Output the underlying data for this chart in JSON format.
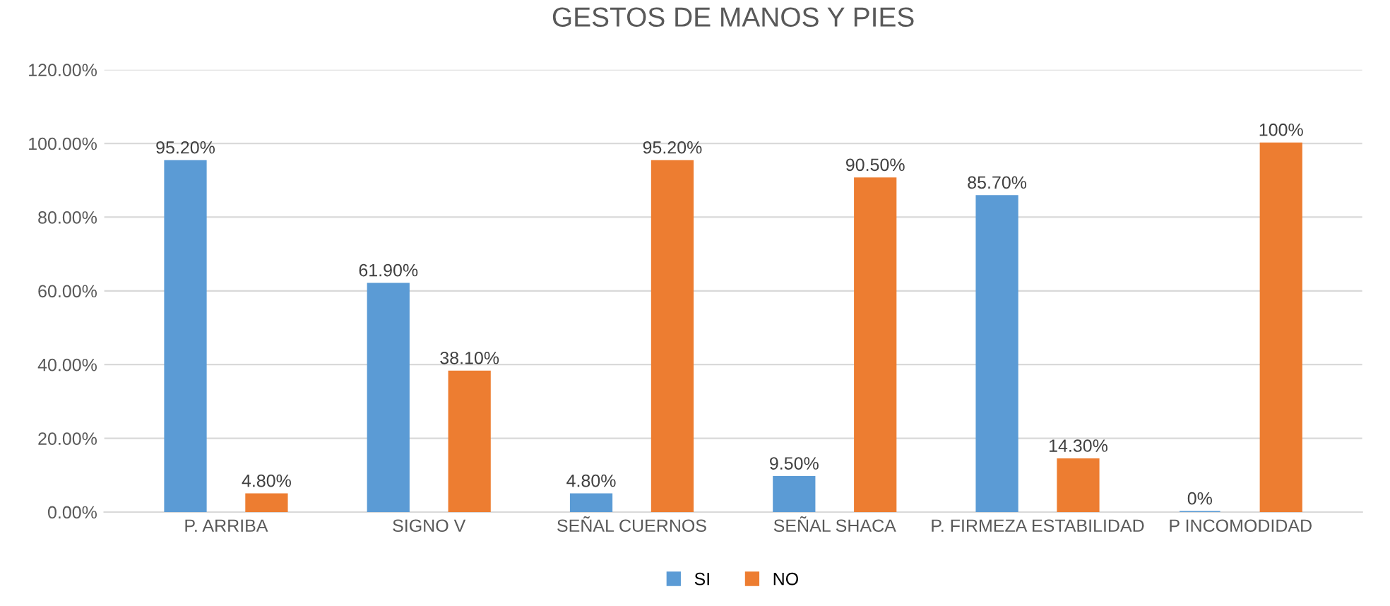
{
  "chart_data": {
    "type": "bar",
    "title": "GESTOS DE MANOS Y PIES",
    "categories": [
      "P. ARRIBA",
      "SIGNO V",
      "SEÑAL CUERNOS",
      "SEÑAL SHACA",
      "P. FIRMEZA ESTABILIDAD",
      "P INCOMODIDAD"
    ],
    "series": [
      {
        "name": "SI",
        "color": "#5b9bd5",
        "values": [
          95.2,
          61.9,
          4.8,
          9.5,
          85.7,
          0
        ],
        "value_labels": [
          "95.20%",
          "61.90%",
          "4.80%",
          "9.50%",
          "85.70%",
          "0%"
        ]
      },
      {
        "name": "NO",
        "color": "#ed7d31",
        "values": [
          4.8,
          38.1,
          95.2,
          90.5,
          14.3,
          100
        ],
        "value_labels": [
          "4.80%",
          "38.10%",
          "95.20%",
          "90.50%",
          "14.30%",
          "100%"
        ]
      }
    ],
    "ylim": [
      0,
      120
    ],
    "yticks": [
      {
        "value": 0,
        "label": "0.00%"
      },
      {
        "value": 20,
        "label": "20.00%"
      },
      {
        "value": 40,
        "label": "40.00%"
      },
      {
        "value": 60,
        "label": "60.00%"
      },
      {
        "value": 80,
        "label": "80.00%"
      },
      {
        "value": 100,
        "label": "100.00%"
      },
      {
        "value": 120,
        "label": "120.00%"
      }
    ],
    "grid": "y",
    "legend": "bottom"
  }
}
